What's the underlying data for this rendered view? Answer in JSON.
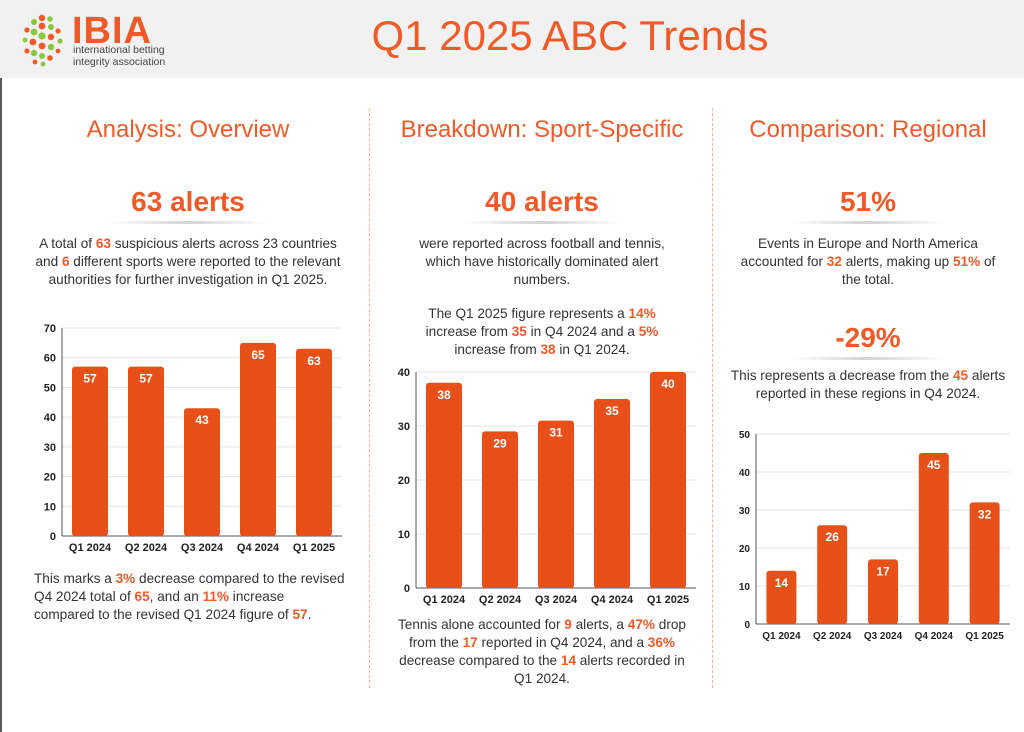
{
  "header": {
    "logo": {
      "word": "IBIA",
      "subtitle": "international betting integrity association"
    },
    "title": "Q1 2025 ABC Trends",
    "accent_color": "#f05a28"
  },
  "columns": [
    {
      "title": "Analysis: Overview",
      "stat": "63 alerts",
      "paragraph_top": [
        {
          "t": "A total of "
        },
        {
          "t": "63",
          "hl": true
        },
        {
          "t": " suspicious alerts across 23 countries and "
        },
        {
          "t": "6",
          "hl": true
        },
        {
          "t": " different sports were reported to the relevant authorities for further investigation in Q1 2025."
        }
      ],
      "paragraph_bottom": [
        {
          "t": "This marks a "
        },
        {
          "t": "3%",
          "hl": true
        },
        {
          "t": " decrease compared to the revised Q4 2024 total of "
        },
        {
          "t": "65",
          "hl": true
        },
        {
          "t": ", and an "
        },
        {
          "t": "11%",
          "hl": true
        },
        {
          "t": " increase compared to the revised Q1 2024 figure of "
        },
        {
          "t": "57",
          "hl": true
        },
        {
          "t": "."
        }
      ]
    },
    {
      "title": "Breakdown: Sport-Specific",
      "stat": "40 alerts",
      "paragraph_top": [
        {
          "t": "were reported across football and tennis, which have historically dominated alert numbers."
        }
      ],
      "paragraph_mid": [
        {
          "t": "The Q1 2025 figure represents a "
        },
        {
          "t": "14%",
          "hl": true
        },
        {
          "t": " increase from "
        },
        {
          "t": "35",
          "hl": true
        },
        {
          "t": " in Q4 2024 and a "
        },
        {
          "t": "5%",
          "hl": true
        },
        {
          "t": " increase from "
        },
        {
          "t": "38",
          "hl": true
        },
        {
          "t": " in Q1 2024."
        }
      ],
      "paragraph_bottom": [
        {
          "t": "Tennis alone accounted for "
        },
        {
          "t": "9",
          "hl": true
        },
        {
          "t": " alerts, a "
        },
        {
          "t": "47%",
          "hl": true
        },
        {
          "t": " drop from the "
        },
        {
          "t": "17",
          "hl": true
        },
        {
          "t": " reported in Q4 2024, and a "
        },
        {
          "t": "36%",
          "hl": true
        },
        {
          "t": " decrease compared to the "
        },
        {
          "t": "14",
          "hl": true
        },
        {
          "t": " alerts recorded in Q1 2024."
        }
      ]
    },
    {
      "title": "Comparison: Regional",
      "stat": "51%",
      "paragraph_top": [
        {
          "t": "Events in Europe and North America accounted for "
        },
        {
          "t": "32",
          "hl": true
        },
        {
          "t": " alerts, making up "
        },
        {
          "t": "51%",
          "hl": true
        },
        {
          "t": " of the total."
        }
      ],
      "stat2": "-29%",
      "paragraph_mid": [
        {
          "t": "This represents a decrease from the "
        },
        {
          "t": "45",
          "hl": true
        },
        {
          "t": " alerts reported in these regions in Q4 2024."
        }
      ]
    }
  ],
  "chart_data": [
    {
      "type": "bar",
      "categories": [
        "Q1 2024",
        "Q2 2024",
        "Q3 2024",
        "Q4 2024",
        "Q1 2025"
      ],
      "values": [
        57,
        57,
        43,
        65,
        63
      ],
      "ylim": [
        0,
        70
      ],
      "yticks": [
        0,
        10,
        20,
        30,
        40,
        50,
        60,
        70
      ],
      "color": "#e8501a",
      "grid": true
    },
    {
      "type": "bar",
      "categories": [
        "Q1 2024",
        "Q2 2024",
        "Q3 2024",
        "Q4 2024",
        "Q1 2025"
      ],
      "values": [
        38,
        29,
        31,
        35,
        40
      ],
      "ylim": [
        0,
        40
      ],
      "yticks": [
        0,
        10,
        20,
        30,
        40
      ],
      "color": "#e8501a",
      "grid": true
    },
    {
      "type": "bar",
      "categories": [
        "Q1 2024",
        "Q2 2024",
        "Q3 2024",
        "Q4 2024",
        "Q1 2025"
      ],
      "values": [
        14,
        26,
        17,
        45,
        32
      ],
      "ylim": [
        0,
        50
      ],
      "yticks": [
        0,
        10,
        20,
        30,
        40,
        50
      ],
      "color": "#e8501a",
      "grid": true
    }
  ]
}
